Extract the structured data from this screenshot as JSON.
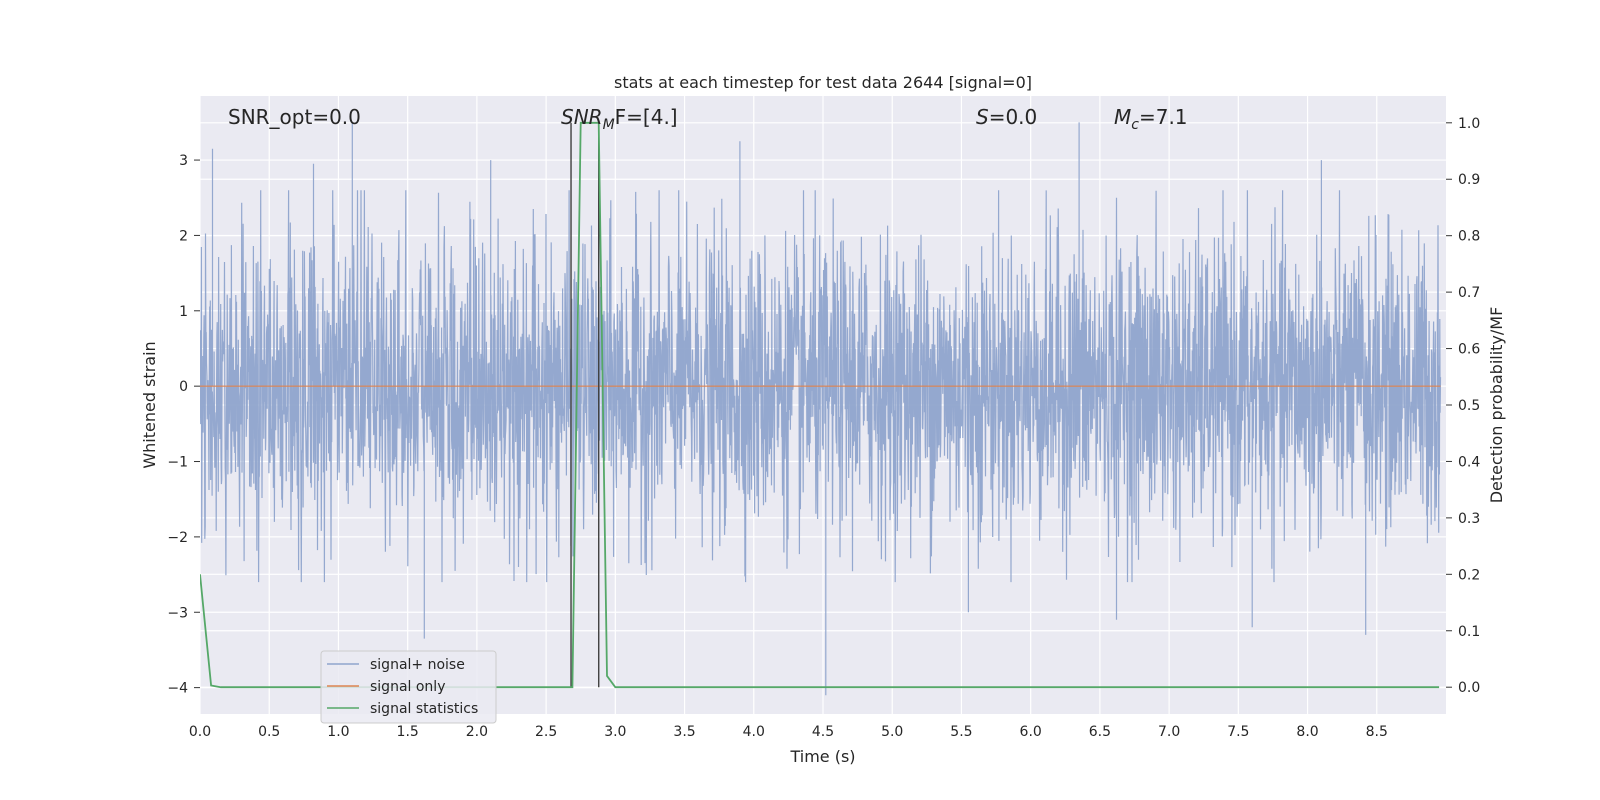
{
  "chart_data": {
    "type": "line",
    "title": "stats at each timestep for test data 2644 [signal=0]",
    "xlabel": "Time (s)",
    "ylabel": "Whitened strain",
    "y2label": "Detection probability/MF",
    "xlim": [
      0,
      9
    ],
    "ylim": [
      -4.35,
      3.85
    ],
    "y2lim": [
      -0.0475,
      1.0475
    ],
    "xticks": [
      "0.0",
      "0.5",
      "1.0",
      "1.5",
      "2.0",
      "2.5",
      "3.0",
      "3.5",
      "4.0",
      "4.5",
      "5.0",
      "5.5",
      "6.0",
      "6.5",
      "7.0",
      "7.5",
      "8.0",
      "8.5"
    ],
    "yticks": [
      "−4",
      "−3",
      "−2",
      "−1",
      "0",
      "1",
      "2",
      "3"
    ],
    "y2ticks": [
      "0.0",
      "0.1",
      "0.2",
      "0.3",
      "0.4",
      "0.5",
      "0.6",
      "0.7",
      "0.8",
      "0.9",
      "1.0"
    ],
    "grid": true,
    "legend_position": "lower-left",
    "annotations": {
      "snr_opt": "SNR_opt=0.0",
      "snr_mf_base": "SNR",
      "snr_mf_sub": "M",
      "snr_mf_rest": "F=[4.]",
      "s_base": "S",
      "s_rest": "=0.0",
      "mc_base": "M",
      "mc_sub": "c",
      "mc_rest": "=7.1"
    },
    "vlines": [
      2.68,
      2.88
    ],
    "series": [
      {
        "name": "signal+ noise",
        "color": "#8fa4cc",
        "noise": true,
        "amplitude": 1.0,
        "spikes": [
          [
            0.09,
            3.15
          ],
          [
            0.82,
            2.95
          ],
          [
            1.1,
            3.5
          ],
          [
            1.62,
            -3.35
          ],
          [
            2.1,
            3.0
          ],
          [
            3.9,
            3.25
          ],
          [
            4.52,
            -4.1
          ],
          [
            5.55,
            -3.0
          ],
          [
            6.35,
            3.5
          ],
          [
            6.62,
            -3.1
          ],
          [
            7.6,
            -3.2
          ],
          [
            8.1,
            3.0
          ],
          [
            8.42,
            -3.3
          ]
        ]
      },
      {
        "name": "signal only",
        "color": "#dd8452",
        "values_constant": 0
      },
      {
        "name": "signal statistics",
        "color": "#55a868",
        "axis": "right",
        "x": [
          0.0,
          0.08,
          0.15,
          2.69,
          2.75,
          2.88,
          2.94,
          3.0,
          8.95
        ],
        "y": [
          0.2,
          0.003,
          0.0,
          0.0,
          1.0,
          1.0,
          0.02,
          0.0,
          0.0
        ]
      }
    ]
  }
}
